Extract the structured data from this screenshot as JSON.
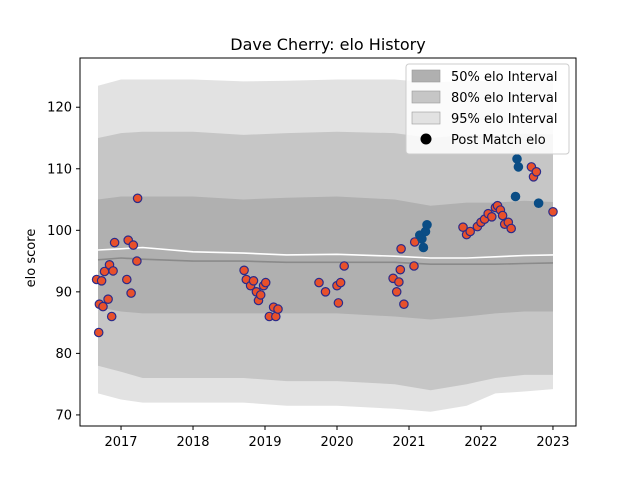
{
  "chart_data": {
    "type": "scatter",
    "title": "Dave Cherry: elo History",
    "xlabel": "",
    "ylabel": "elo score",
    "xlim": [
      2016.43,
      2023.32
    ],
    "ylim": [
      68.2,
      128.0
    ],
    "x_ticks": [
      2017,
      2018,
      2019,
      2020,
      2021,
      2022,
      2023
    ],
    "y_ticks": [
      70,
      80,
      90,
      100,
      110,
      120
    ],
    "grid": false,
    "legend_position": "top-right",
    "colors": {
      "band_50": "#b0b0b0",
      "band_80": "#c6c6c6",
      "band_95": "#e2e2e2",
      "median_line": "#8a8a8a",
      "mean_line": "#ffffff",
      "point_orange": "#e8502b",
      "point_edge": "#2b2b8a",
      "point_blue": "#0a4d85"
    },
    "legend": [
      {
        "label": "50% elo Interval",
        "kind": "band_50"
      },
      {
        "label": "80% elo Interval",
        "kind": "band_80"
      },
      {
        "label": "95% elo Interval",
        "kind": "band_95"
      },
      {
        "label": "Post Match elo",
        "kind": "point"
      }
    ],
    "bands": {
      "x": [
        2016.68,
        2017.0,
        2017.3,
        2018.0,
        2018.7,
        2019.3,
        2020.0,
        2020.8,
        2021.3,
        2021.8,
        2022.2,
        2022.6,
        2023.0
      ],
      "p95_hi": [
        123.5,
        124.5,
        124.5,
        124.5,
        124.2,
        124.3,
        124.5,
        124.5,
        124.0,
        124.3,
        124.2,
        124.5,
        124.5
      ],
      "p80_hi": [
        115.0,
        115.8,
        116.0,
        116.0,
        115.5,
        115.8,
        116.0,
        115.8,
        115.0,
        115.5,
        115.5,
        115.7,
        115.6
      ],
      "p50_hi": [
        105.0,
        105.5,
        105.5,
        105.5,
        105.0,
        105.3,
        105.5,
        105.0,
        104.0,
        104.5,
        104.5,
        104.8,
        104.6
      ],
      "p50_lo": [
        87.5,
        86.8,
        86.5,
        86.5,
        86.5,
        86.5,
        86.5,
        86.0,
        85.5,
        86.0,
        86.5,
        86.8,
        86.8
      ],
      "p80_lo": [
        78.0,
        77.0,
        76.0,
        76.0,
        76.0,
        75.5,
        75.5,
        75.0,
        74.0,
        75.0,
        76.0,
        76.5,
        76.5
      ],
      "p95_lo": [
        73.5,
        72.5,
        72.0,
        72.0,
        72.0,
        71.5,
        71.5,
        71.0,
        70.5,
        71.5,
        73.5,
        73.8,
        74.2
      ],
      "median": [
        95.2,
        95.5,
        95.3,
        95.0,
        95.0,
        94.8,
        94.8,
        94.8,
        94.5,
        94.5,
        94.5,
        94.6,
        94.7
      ],
      "mean": [
        96.8,
        97.0,
        97.2,
        96.5,
        96.3,
        96.0,
        96.1,
        95.8,
        95.5,
        95.5,
        95.7,
        95.9,
        96.0
      ]
    },
    "series": [
      {
        "name": "Post Match elo",
        "style": "orange",
        "points": [
          [
            2016.66,
            92.0
          ],
          [
            2016.69,
            83.4
          ],
          [
            2016.7,
            88.0
          ],
          [
            2016.73,
            91.8
          ],
          [
            2016.75,
            87.6
          ],
          [
            2016.77,
            93.3
          ],
          [
            2016.82,
            88.8
          ],
          [
            2016.84,
            94.4
          ],
          [
            2016.87,
            86.0
          ],
          [
            2016.89,
            93.4
          ],
          [
            2016.91,
            98.0
          ],
          [
            2017.08,
            92.0
          ],
          [
            2017.1,
            98.4
          ],
          [
            2017.14,
            89.8
          ],
          [
            2017.17,
            97.6
          ],
          [
            2017.22,
            95.0
          ],
          [
            2017.23,
            105.2
          ],
          [
            2018.71,
            93.5
          ],
          [
            2018.74,
            92.0
          ],
          [
            2018.8,
            91.0
          ],
          [
            2018.84,
            91.8
          ],
          [
            2018.88,
            90.0
          ],
          [
            2018.91,
            88.6
          ],
          [
            2018.94,
            89.5
          ],
          [
            2018.98,
            91.0
          ],
          [
            2019.01,
            91.5
          ],
          [
            2019.06,
            86.0
          ],
          [
            2019.12,
            87.5
          ],
          [
            2019.15,
            86.0
          ],
          [
            2019.18,
            87.2
          ],
          [
            2019.75,
            91.5
          ],
          [
            2019.84,
            90.0
          ],
          [
            2020.0,
            91.0
          ],
          [
            2020.02,
            88.2
          ],
          [
            2020.05,
            91.5
          ],
          [
            2020.1,
            94.2
          ],
          [
            2020.78,
            92.2
          ],
          [
            2020.83,
            90.0
          ],
          [
            2020.86,
            91.6
          ],
          [
            2020.88,
            93.6
          ],
          [
            2020.89,
            97.0
          ],
          [
            2020.93,
            88.0
          ],
          [
            2021.07,
            94.2
          ],
          [
            2021.08,
            98.1
          ],
          [
            2021.75,
            100.5
          ],
          [
            2021.8,
            99.3
          ],
          [
            2021.85,
            99.8
          ],
          [
            2021.95,
            100.6
          ],
          [
            2022.0,
            101.3
          ],
          [
            2022.05,
            101.8
          ],
          [
            2022.1,
            102.7
          ],
          [
            2022.15,
            102.2
          ],
          [
            2022.2,
            103.7
          ],
          [
            2022.23,
            104.0
          ],
          [
            2022.27,
            103.3
          ],
          [
            2022.3,
            102.4
          ],
          [
            2022.33,
            101.0
          ],
          [
            2022.38,
            101.3
          ],
          [
            2022.42,
            100.3
          ],
          [
            2022.7,
            110.3
          ],
          [
            2022.73,
            108.7
          ],
          [
            2022.77,
            109.5
          ],
          [
            2023.0,
            103.0
          ]
        ]
      },
      {
        "name": "Post Match elo",
        "style": "blue",
        "points": [
          [
            2021.15,
            99.2
          ],
          [
            2021.18,
            98.6
          ],
          [
            2021.2,
            97.2
          ],
          [
            2021.23,
            99.8
          ],
          [
            2021.25,
            100.9
          ],
          [
            2022.48,
            105.5
          ],
          [
            2022.5,
            111.6
          ],
          [
            2022.52,
            110.3
          ],
          [
            2022.8,
            104.4
          ]
        ]
      }
    ]
  }
}
